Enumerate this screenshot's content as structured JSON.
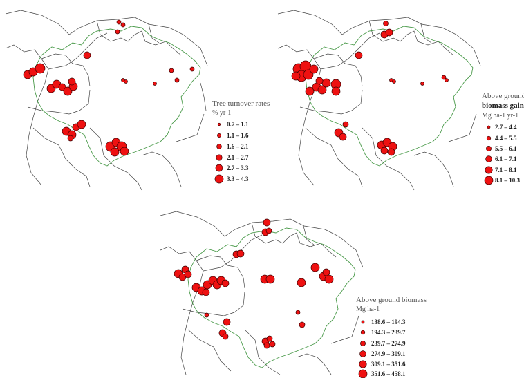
{
  "panels": [
    {
      "id": "turnover",
      "legend": {
        "title_line1": "Tree turnover rates",
        "title_line2": "",
        "unit": "% yr-1",
        "classes": [
          "0.7 – 1.1",
          "1.1 – 1.6",
          "1.6 – 2.1",
          "2.1 – 2.7",
          "2.7 – 3.3",
          "3.3 – 4.3"
        ]
      }
    },
    {
      "id": "biomass-gain",
      "legend": {
        "title_line1": "Above ground",
        "title_line2": "biomass gain",
        "unit": "Mg ha-1 yr-1",
        "classes": [
          "2.7 – 4.4",
          "4.4 – 5.5",
          "5.5 – 6.1",
          "6.1 – 7.1",
          "7.1 – 8.1",
          "8.1 – 10.3"
        ]
      }
    },
    {
      "id": "biomass",
      "legend": {
        "title_line1": "Above ground biomass",
        "title_line2": "",
        "unit": "Mg ha-1",
        "classes": [
          "138.6 – 194.3",
          "194.3 – 239.7",
          "239.7 – 274.9",
          "274.9 – 309.1",
          "309.1 – 351.6",
          "351.6 – 458.1"
        ]
      }
    }
  ],
  "colors": {
    "plot_fill": "#ee1111",
    "plot_stroke": "#3a0000",
    "basin_outline": "#4a9a4a",
    "borders": "#444444"
  }
}
